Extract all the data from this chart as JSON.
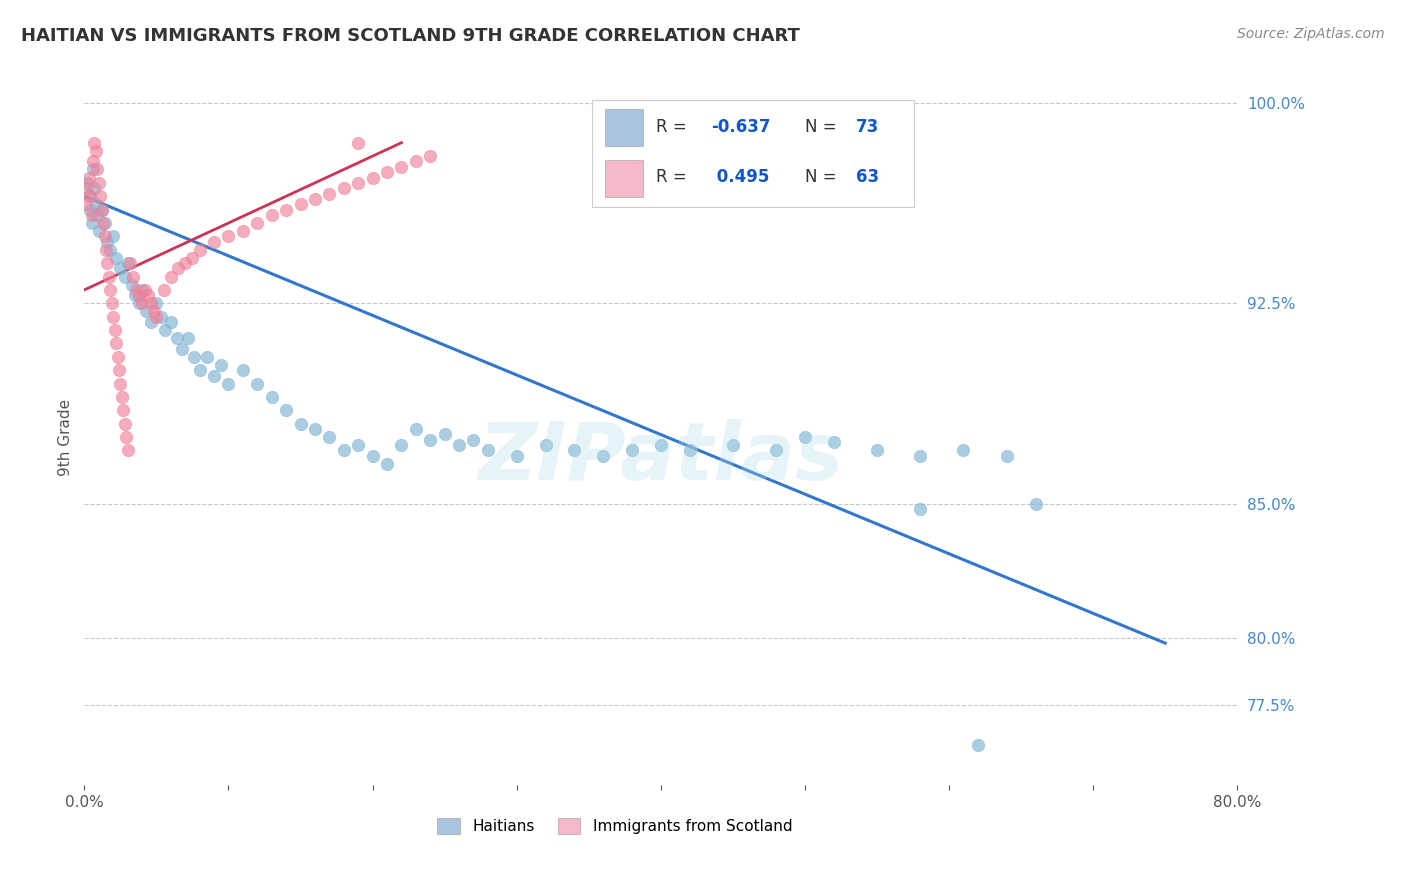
{
  "title": "HAITIAN VS IMMIGRANTS FROM SCOTLAND 9TH GRADE CORRELATION CHART",
  "source_text": "Source: ZipAtlas.com",
  "ylabel": "9th Grade",
  "xlim": [
    0.0,
    0.8
  ],
  "ylim": [
    0.745,
    1.005
  ],
  "ytick_positions": [
    0.775,
    0.8,
    0.85,
    0.925,
    1.0
  ],
  "ytick_labels": [
    "77.5%",
    "80.0%",
    "85.0%",
    "92.5%",
    "100.0%"
  ],
  "legend_items": [
    {
      "color": "#a8c4e0",
      "label": "Haitians"
    },
    {
      "color": "#f4b8c8",
      "label": "Immigrants from Scotland"
    }
  ],
  "blue_scatter_x": [
    0.002,
    0.003,
    0.004,
    0.005,
    0.006,
    0.007,
    0.008,
    0.009,
    0.01,
    0.012,
    0.014,
    0.016,
    0.018,
    0.02,
    0.022,
    0.025,
    0.028,
    0.03,
    0.033,
    0.035,
    0.038,
    0.04,
    0.043,
    0.046,
    0.05,
    0.053,
    0.056,
    0.06,
    0.064,
    0.068,
    0.072,
    0.076,
    0.08,
    0.085,
    0.09,
    0.095,
    0.1,
    0.11,
    0.12,
    0.13,
    0.14,
    0.15,
    0.16,
    0.17,
    0.18,
    0.19,
    0.2,
    0.21,
    0.22,
    0.23,
    0.24,
    0.25,
    0.26,
    0.27,
    0.28,
    0.3,
    0.32,
    0.34,
    0.36,
    0.38,
    0.4,
    0.42,
    0.45,
    0.48,
    0.5,
    0.52,
    0.55,
    0.58,
    0.61,
    0.64,
    0.66,
    0.58,
    0.62
  ],
  "blue_scatter_y": [
    0.97,
    0.965,
    0.96,
    0.955,
    0.975,
    0.968,
    0.962,
    0.958,
    0.952,
    0.96,
    0.955,
    0.948,
    0.945,
    0.95,
    0.942,
    0.938,
    0.935,
    0.94,
    0.932,
    0.928,
    0.925,
    0.93,
    0.922,
    0.918,
    0.925,
    0.92,
    0.915,
    0.918,
    0.912,
    0.908,
    0.912,
    0.905,
    0.9,
    0.905,
    0.898,
    0.902,
    0.895,
    0.9,
    0.895,
    0.89,
    0.885,
    0.88,
    0.878,
    0.875,
    0.87,
    0.872,
    0.868,
    0.865,
    0.872,
    0.878,
    0.874,
    0.876,
    0.872,
    0.874,
    0.87,
    0.868,
    0.872,
    0.87,
    0.868,
    0.87,
    0.872,
    0.87,
    0.872,
    0.87,
    0.875,
    0.873,
    0.87,
    0.868,
    0.87,
    0.868,
    0.85,
    0.848,
    0.76
  ],
  "pink_scatter_x": [
    0.001,
    0.002,
    0.003,
    0.004,
    0.005,
    0.006,
    0.007,
    0.008,
    0.009,
    0.01,
    0.011,
    0.012,
    0.013,
    0.014,
    0.015,
    0.016,
    0.017,
    0.018,
    0.019,
    0.02,
    0.021,
    0.022,
    0.023,
    0.024,
    0.025,
    0.026,
    0.027,
    0.028,
    0.029,
    0.03,
    0.032,
    0.034,
    0.036,
    0.038,
    0.04,
    0.042,
    0.044,
    0.046,
    0.048,
    0.05,
    0.055,
    0.06,
    0.065,
    0.07,
    0.075,
    0.08,
    0.09,
    0.1,
    0.11,
    0.12,
    0.13,
    0.14,
    0.15,
    0.16,
    0.17,
    0.18,
    0.19,
    0.2,
    0.21,
    0.22,
    0.23,
    0.24,
    0.19
  ],
  "pink_scatter_y": [
    0.962,
    0.968,
    0.972,
    0.965,
    0.958,
    0.978,
    0.985,
    0.982,
    0.975,
    0.97,
    0.965,
    0.96,
    0.955,
    0.95,
    0.945,
    0.94,
    0.935,
    0.93,
    0.925,
    0.92,
    0.915,
    0.91,
    0.905,
    0.9,
    0.895,
    0.89,
    0.885,
    0.88,
    0.875,
    0.87,
    0.94,
    0.935,
    0.93,
    0.928,
    0.925,
    0.93,
    0.928,
    0.925,
    0.922,
    0.92,
    0.93,
    0.935,
    0.938,
    0.94,
    0.942,
    0.945,
    0.948,
    0.95,
    0.952,
    0.955,
    0.958,
    0.96,
    0.962,
    0.964,
    0.966,
    0.968,
    0.97,
    0.972,
    0.974,
    0.976,
    0.978,
    0.98,
    0.985
  ],
  "blue_line_x": [
    0.0,
    0.75
  ],
  "blue_line_y": [
    0.965,
    0.798
  ],
  "pink_line_x": [
    0.0,
    0.22
  ],
  "pink_line_y": [
    0.93,
    0.985
  ],
  "scatter_color_blue": "#7fb3d3",
  "scatter_color_pink": "#f08098",
  "line_color_blue": "#3377cc",
  "line_color_pink": "#cc3355",
  "legend_box_blue": "#a8c4e0",
  "legend_box_pink": "#f4b8c8",
  "watermark": "ZIPatlas",
  "background_color": "#ffffff",
  "grid_color": "#bbbbbb",
  "title_color": "#333333",
  "axis_label_color": "#4488cc",
  "tick_color": "#555555",
  "legend_R_color": "#1155cc",
  "legend_N_color": "#1155cc"
}
